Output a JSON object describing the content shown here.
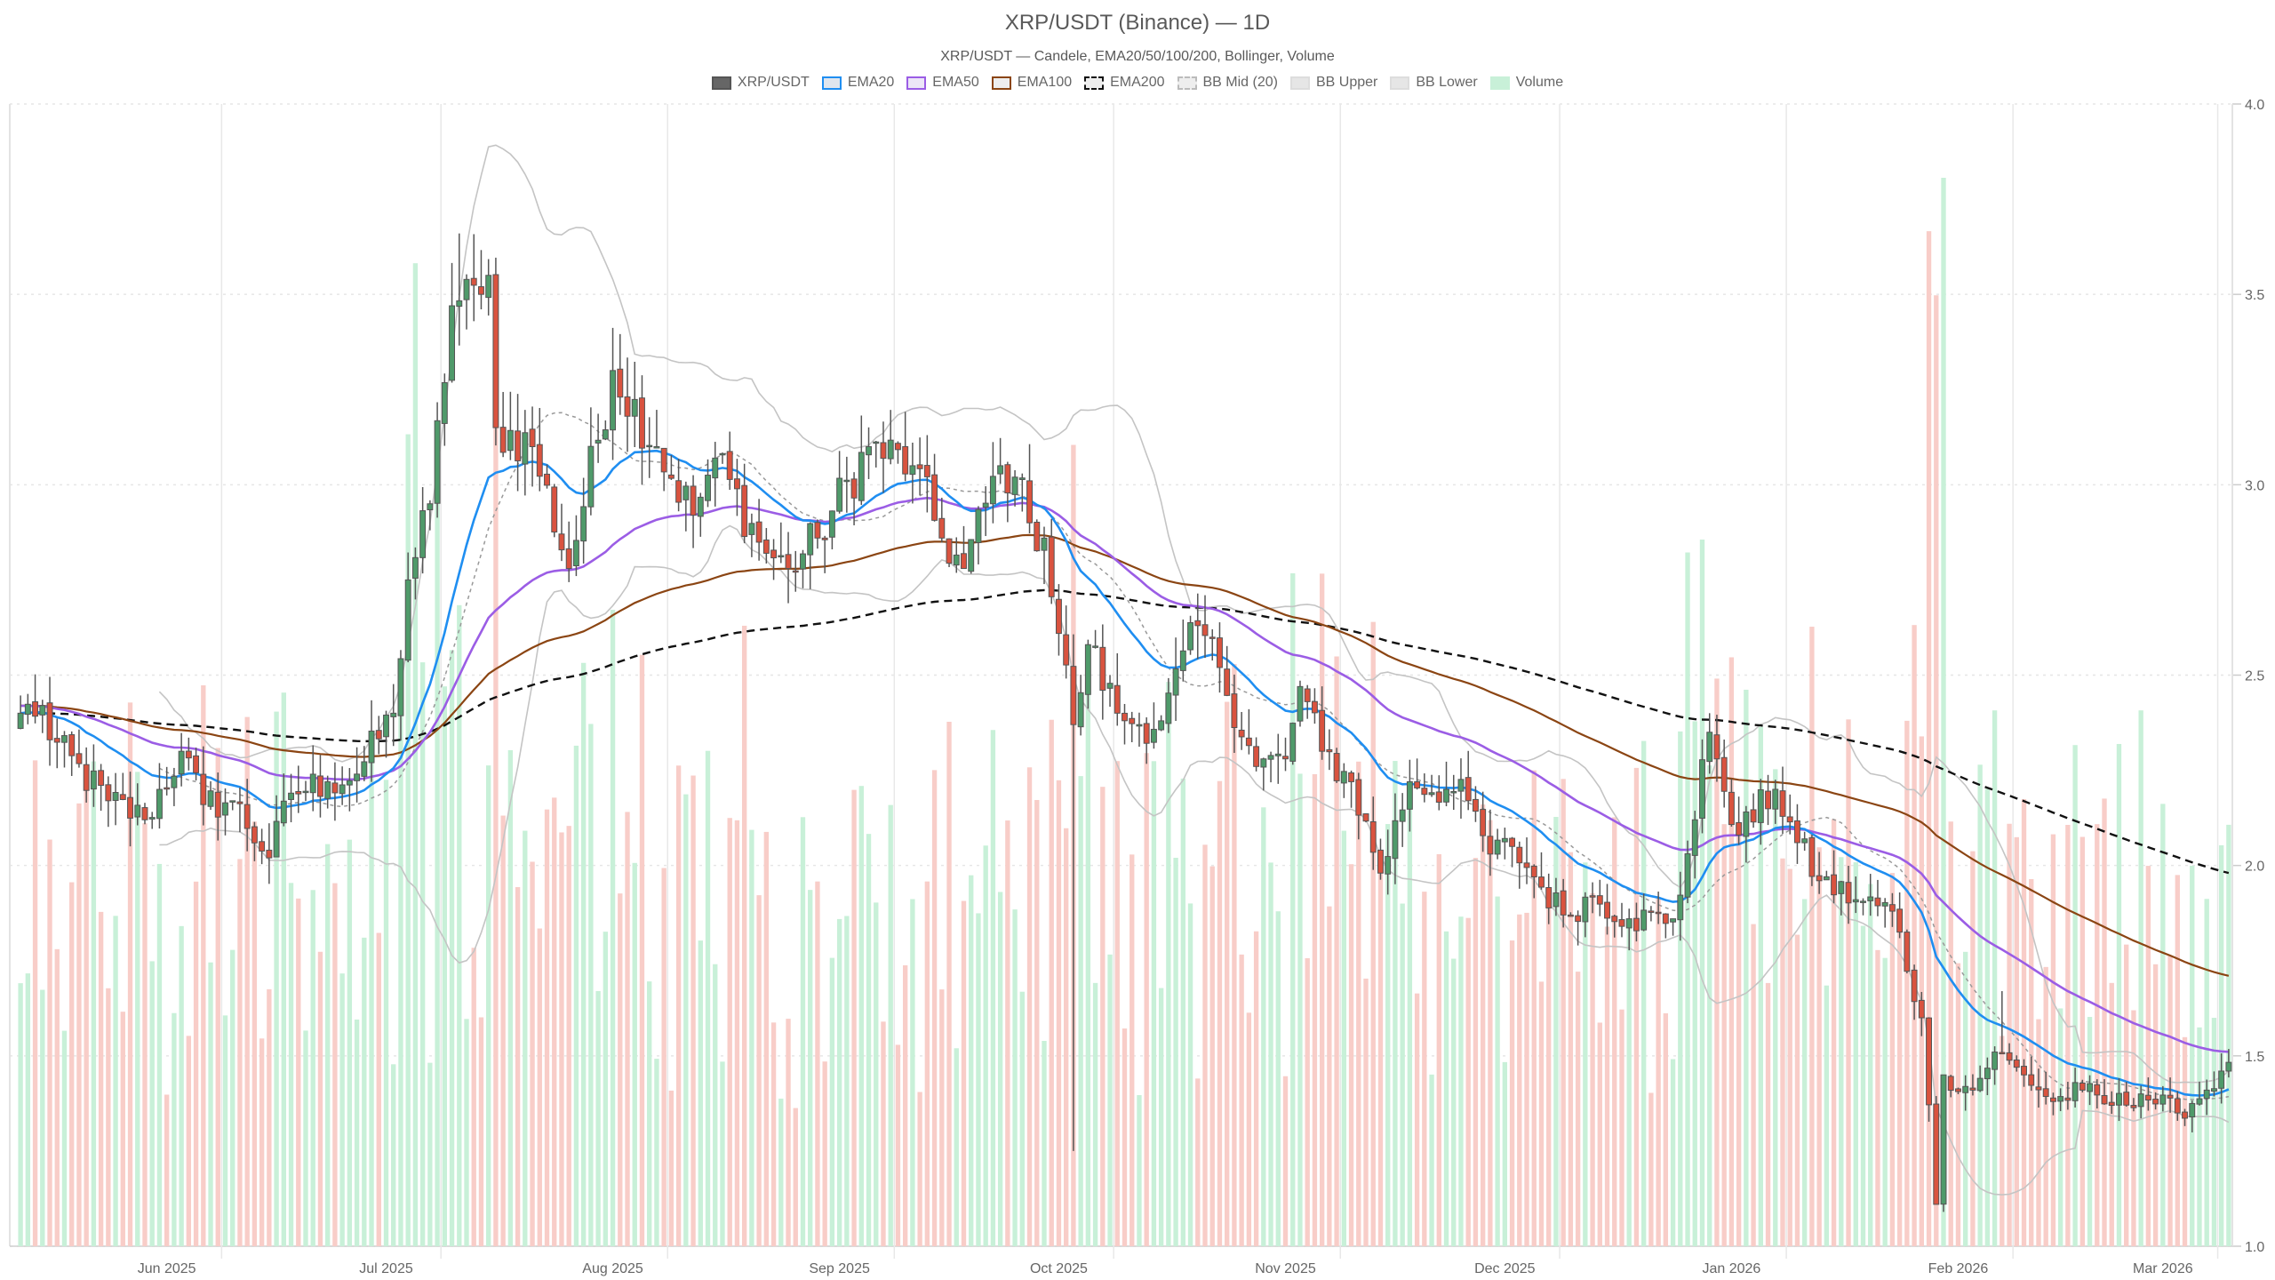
{
  "title": "XRP/USDT (Binance) — 1D",
  "subtitle": "XRP/USDT — Candele, EMA20/50/100/200, Bollinger, Volume",
  "legend": [
    {
      "label": "XRP/USDT",
      "style": "solid",
      "fill": "#666666",
      "border": "#555555"
    },
    {
      "label": "EMA20",
      "style": "solid",
      "fill": "#e0e6ee",
      "border": "#1f8ef1"
    },
    {
      "label": "EMA50",
      "style": "solid",
      "fill": "#ece6f7",
      "border": "#9b5de5"
    },
    {
      "label": "EMA100",
      "style": "solid",
      "fill": "#eeeeee",
      "border": "#8b4513"
    },
    {
      "label": "EMA200",
      "style": "dashed",
      "fill": "#eeeeee",
      "border": "#111111"
    },
    {
      "label": "BB Mid (20)",
      "style": "dashed",
      "fill": "#eeeeee",
      "border": "#bbbbbb"
    },
    {
      "label": "BB Upper",
      "style": "solid",
      "fill": "#e6e6e6",
      "border": "#dddddd"
    },
    {
      "label": "BB Lower",
      "style": "solid",
      "fill": "#e6e6e6",
      "border": "#dddddd"
    },
    {
      "label": "Volume",
      "style": "solid",
      "fill": "#c8f0d8",
      "border": "#c8f0d8"
    }
  ],
  "colors": {
    "up": "#4f9a6a",
    "down": "#d9533f",
    "wick": "#555555",
    "ema20": "#1f8ef1",
    "ema50": "#9b5de5",
    "ema100": "#8b4513",
    "ema200": "#111111",
    "bb_mid": "#999999",
    "bb_band": "#c4c4c4",
    "vol_up": "#c8f0d8",
    "vol_down": "#f8cdc8",
    "grid": "#e6e6e6"
  },
  "chart_data": {
    "type": "candlestick",
    "title": "XRP/USDT (Binance) — 1D",
    "subtitle": "XRP/USDT — Candele, EMA20/50/100/200, Bollinger, Volume",
    "ylim": [
      1.0,
      4.0
    ],
    "y_ticks": [
      "1.0",
      "1.5",
      "2.0",
      "2.5",
      "3.0",
      "3.5",
      "4.0"
    ],
    "x_ticks": [
      "Jun 2025",
      "Jul 2025",
      "Aug 2025",
      "Sep 2025",
      "Oct 2025",
      "Nov 2025",
      "Dec 2025",
      "Jan 2026",
      "Feb 2026",
      "Mar 2026"
    ],
    "x_range": [
      "2025-05-19",
      "2026-03-17"
    ],
    "grid": true,
    "legend_position": "top",
    "close_anchors": [
      [
        "2025-05-19",
        2.4
      ],
      [
        "2025-05-22",
        2.42
      ],
      [
        "2025-05-23",
        2.33
      ],
      [
        "2025-05-31",
        2.17
      ],
      [
        "2025-06-05",
        2.12
      ],
      [
        "2025-06-10",
        2.3
      ],
      [
        "2025-06-13",
        2.16
      ],
      [
        "2025-06-17",
        2.17
      ],
      [
        "2025-06-22",
        2.02
      ],
      [
        "2025-06-25",
        2.19
      ],
      [
        "2025-06-30",
        2.22
      ],
      [
        "2025-07-04",
        2.24
      ],
      [
        "2025-07-09",
        2.4
      ],
      [
        "2025-07-11",
        2.75
      ],
      [
        "2025-07-14",
        2.95
      ],
      [
        "2025-07-17",
        3.47
      ],
      [
        "2025-07-21",
        3.5
      ],
      [
        "2025-07-22",
        3.55
      ],
      [
        "2025-07-23",
        3.15
      ],
      [
        "2025-07-28",
        3.1
      ],
      [
        "2025-08-02",
        2.78
      ],
      [
        "2025-08-08",
        3.3
      ],
      [
        "2025-08-14",
        3.1
      ],
      [
        "2025-08-19",
        2.92
      ],
      [
        "2025-08-22",
        3.07
      ],
      [
        "2025-08-29",
        2.82
      ],
      [
        "2025-09-01",
        2.78
      ],
      [
        "2025-09-05",
        2.86
      ],
      [
        "2025-09-12",
        3.1
      ],
      [
        "2025-09-18",
        3.05
      ],
      [
        "2025-09-22",
        2.86
      ],
      [
        "2025-09-25",
        2.78
      ],
      [
        "2025-09-30",
        3.05
      ],
      [
        "2025-10-02",
        3.02
      ],
      [
        "2025-10-04",
        2.9
      ],
      [
        "2025-10-06",
        2.86
      ],
      [
        "2025-10-10",
        2.37
      ],
      [
        "2025-10-12",
        2.58
      ],
      [
        "2025-10-16",
        2.4
      ],
      [
        "2025-10-19",
        2.37
      ],
      [
        "2025-10-22",
        2.38
      ],
      [
        "2025-10-27",
        2.63
      ],
      [
        "2025-10-30",
        2.52
      ],
      [
        "2025-11-04",
        2.26
      ],
      [
        "2025-11-08",
        2.28
      ],
      [
        "2025-11-10",
        2.47
      ],
      [
        "2025-11-13",
        2.3
      ],
      [
        "2025-11-17",
        2.22
      ],
      [
        "2025-11-21",
        1.98
      ],
      [
        "2025-11-25",
        2.22
      ],
      [
        "2025-11-30",
        2.2
      ],
      [
        "2025-12-03",
        2.17
      ],
      [
        "2025-12-06",
        2.03
      ],
      [
        "2025-12-09",
        2.05
      ],
      [
        "2025-12-12",
        1.97
      ],
      [
        "2025-12-16",
        1.87
      ],
      [
        "2025-12-20",
        1.92
      ],
      [
        "2025-12-25",
        1.86
      ],
      [
        "2025-12-31",
        1.86
      ],
      [
        "2026-01-03",
        2.12
      ],
      [
        "2026-01-05",
        2.35
      ],
      [
        "2026-01-06",
        2.28
      ],
      [
        "2026-01-09",
        2.08
      ],
      [
        "2026-01-14",
        2.2
      ],
      [
        "2026-01-17",
        2.06
      ],
      [
        "2026-01-20",
        1.96
      ],
      [
        "2026-01-25",
        1.91
      ],
      [
        "2026-01-30",
        1.88
      ],
      [
        "2026-02-03",
        1.6
      ],
      [
        "2026-02-05",
        1.11
      ],
      [
        "2026-02-06",
        1.45
      ],
      [
        "2026-02-10",
        1.41
      ],
      [
        "2026-02-13",
        1.51
      ],
      [
        "2026-02-17",
        1.45
      ],
      [
        "2026-02-21",
        1.38
      ],
      [
        "2026-02-25",
        1.41
      ],
      [
        "2026-03-01",
        1.37
      ],
      [
        "2026-03-05",
        1.4
      ],
      [
        "2026-03-10",
        1.35
      ],
      [
        "2026-03-14",
        1.41
      ],
      [
        "2026-03-16",
        1.46
      ]
    ],
    "series_last": {
      "EMA20": 1.41,
      "EMA50": 1.51,
      "EMA100": 1.71,
      "EMA200": 1.98,
      "BB Upper": 1.47,
      "BB Mid (20)": 1.39,
      "BB Lower": 1.33
    },
    "volume_note": "Volume bars on secondary scale at bottom; spikes around 2025-07-15, 2025-10-10, 2026-02-04/05"
  }
}
